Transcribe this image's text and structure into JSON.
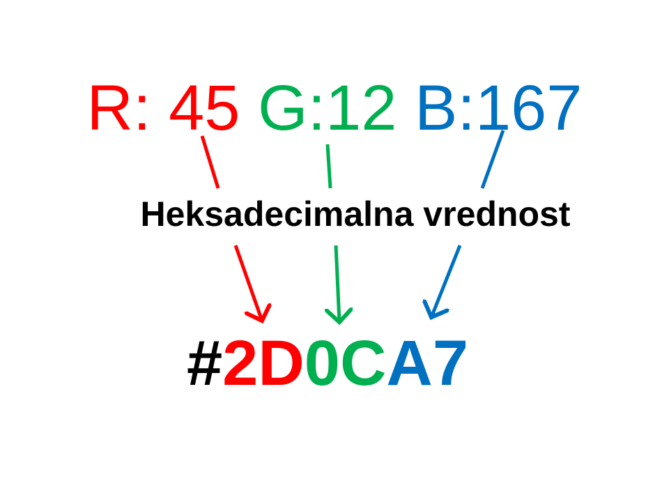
{
  "rgb": {
    "r_label": "R: 45",
    "g_label": "G:12",
    "b_label": "B:167"
  },
  "label": "Heksadecimalna vrednost",
  "hex": {
    "hash": "#",
    "r": "2D",
    "g": "0C",
    "b": "A7"
  },
  "colors": {
    "red": "#ff0000",
    "green": "#00b050",
    "blue": "#0070c0",
    "black": "#000000"
  }
}
